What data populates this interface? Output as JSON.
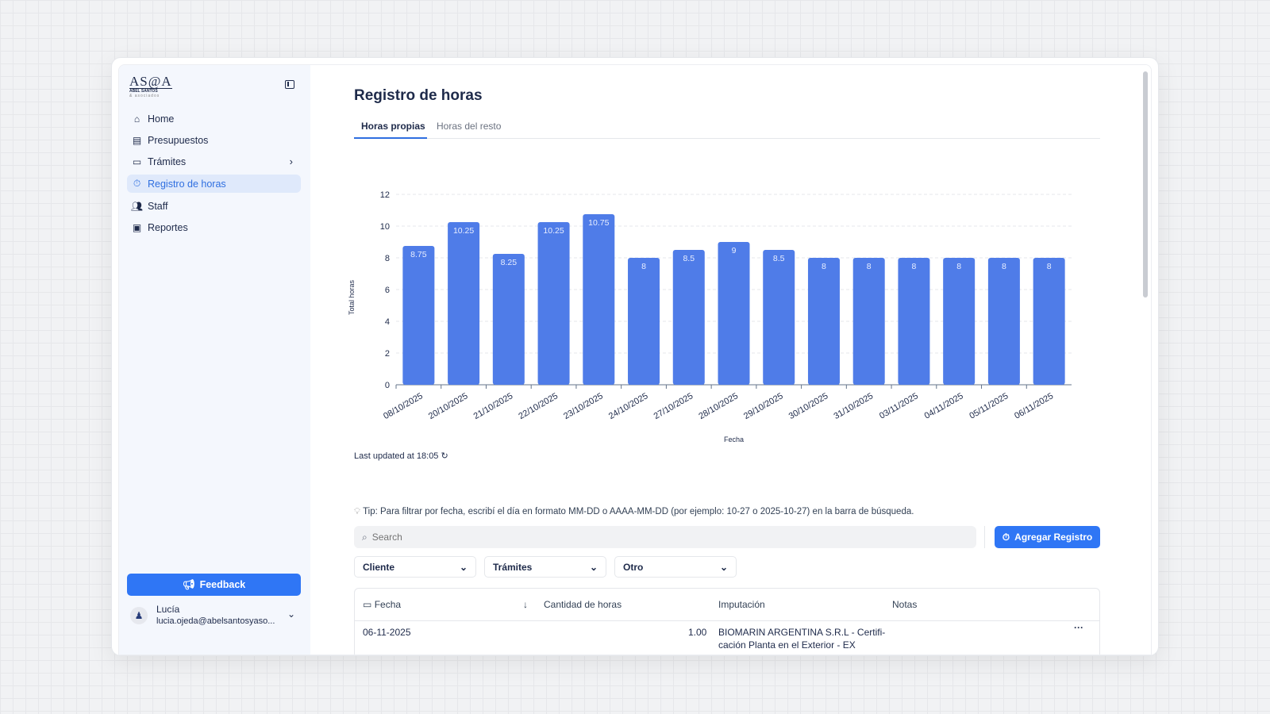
{
  "sidebar": {
    "logo": {
      "main": "AS@A",
      "line1": "ABEL SANTOS",
      "line2": "& asociados"
    },
    "items": [
      {
        "label": "Home",
        "icon": "home-icon"
      },
      {
        "label": "Presupuestos",
        "icon": "document-icon"
      },
      {
        "label": "Trámites",
        "icon": "folder-icon"
      },
      {
        "label": "Registro de horas",
        "icon": "timer-icon",
        "active": true
      },
      {
        "label": "Staff",
        "icon": "users-icon"
      },
      {
        "label": "Reportes",
        "icon": "presentation-icon"
      }
    ],
    "feedback_label": "Feedback",
    "user": {
      "name": "Lucía",
      "email": "lucia.ojeda@abelsantosyaso..."
    }
  },
  "main": {
    "title": "Registro de horas",
    "tabs": [
      {
        "label": "Horas propias",
        "active": true
      },
      {
        "label": "Horas del resto"
      }
    ],
    "last_updated": "Last updated at 18:05",
    "tip": "Tip: Para filtrar por fecha, escribí el día en formato MM-DD o AAAA-MM-DD (por ejemplo: 10-27 o 2025-10-27) en la barra de búsqueda.",
    "search_placeholder": "Search",
    "add_button": "Agregar Registro",
    "filters": [
      "Cliente",
      "Trámites",
      "Otro"
    ],
    "table": {
      "headers": [
        "Fecha",
        "Cantidad de horas",
        "Imputación",
        "Notas"
      ],
      "rows": [
        {
          "fecha": "06-11-2025",
          "horas": "1.00",
          "imputacion": "BIOMARIN ARGENTINA S.R.L - Certifi-",
          "imputacion2": "cación Planta en el Exterior - EX",
          "notas": ""
        }
      ]
    }
  },
  "chart_data": {
    "type": "bar",
    "xlabel": "Fecha",
    "ylabel": "Total horas",
    "ylim": [
      0,
      12
    ],
    "yticks": [
      0,
      2,
      4,
      6,
      8,
      10,
      12
    ],
    "grid": true,
    "color": "#4f7ce8",
    "categories": [
      "08/10/2025",
      "20/10/2025",
      "21/10/2025",
      "22/10/2025",
      "23/10/2025",
      "24/10/2025",
      "27/10/2025",
      "28/10/2025",
      "29/10/2025",
      "30/10/2025",
      "31/10/2025",
      "03/11/2025",
      "04/11/2025",
      "05/11/2025",
      "06/11/2025"
    ],
    "values": [
      8.75,
      10.25,
      8.25,
      10.25,
      10.75,
      8,
      8.5,
      9,
      8.5,
      8,
      8,
      8,
      8,
      8,
      8
    ]
  }
}
